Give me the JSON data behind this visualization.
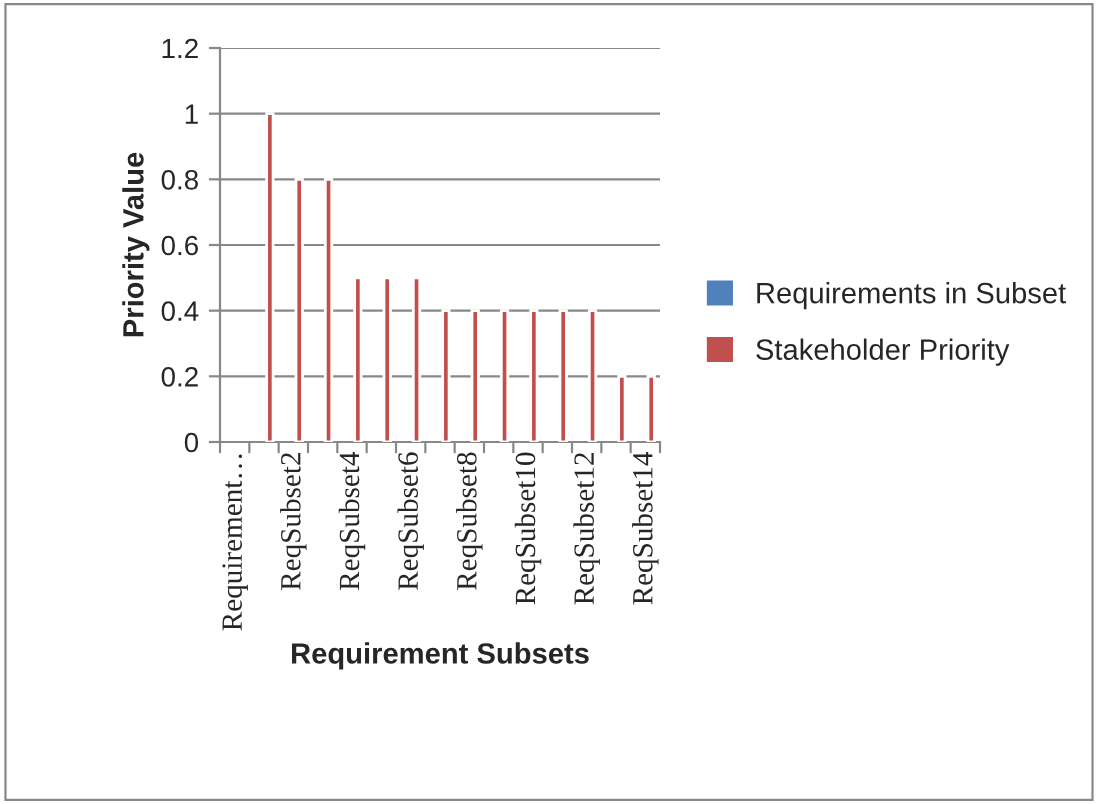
{
  "chart_data": {
    "type": "bar",
    "xlabel": "Requirement Subsets",
    "ylabel": "Priority Value",
    "categories": [
      "Requirement…",
      null,
      "ReqSubset2",
      null,
      "ReqSubset4",
      null,
      "ReqSubset6",
      null,
      "ReqSubset8",
      null,
      "ReqSubset10",
      null,
      "ReqSubset12",
      null,
      "ReqSubset14"
    ],
    "series": [
      {
        "name": "Requirements in Subset",
        "color": "#4f81bd",
        "values": [
          null,
          null,
          null,
          null,
          null,
          null,
          null,
          null,
          null,
          null,
          null,
          null,
          null,
          null,
          null
        ]
      },
      {
        "name": "Stakeholder Priority",
        "color": "#c0504d",
        "values": [
          null,
          1,
          0.8,
          0.8,
          0.5,
          0.5,
          0.5,
          0.4,
          0.4,
          0.4,
          0.4,
          0.4,
          0.4,
          0.2,
          0.2
        ]
      }
    ],
    "ylim": [
      0,
      1.2
    ],
    "yticks": [
      0,
      0.2,
      0.4,
      0.6,
      0.8,
      1,
      1.2
    ],
    "grid": "y",
    "legend": "right"
  }
}
